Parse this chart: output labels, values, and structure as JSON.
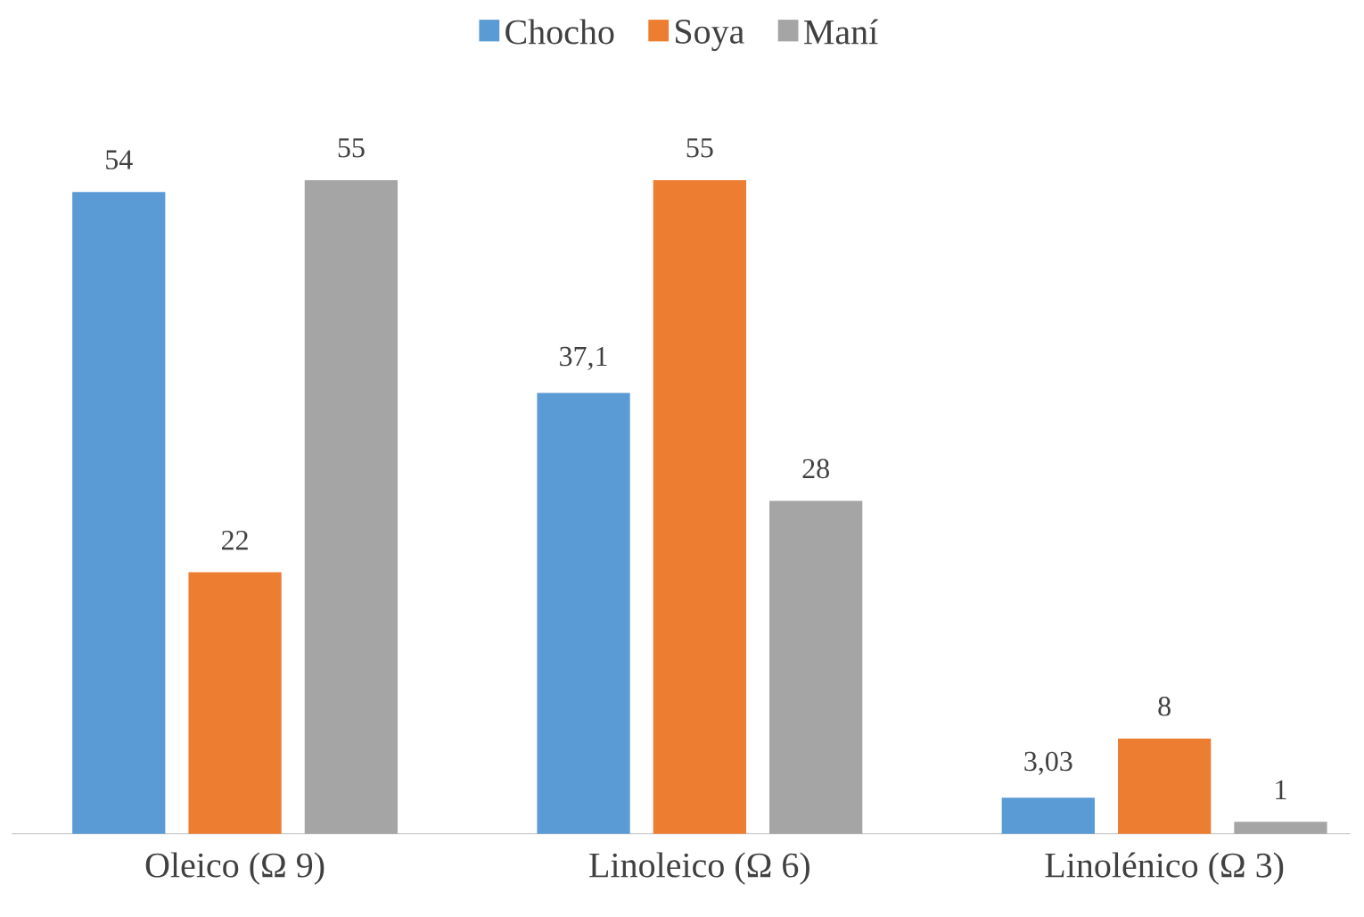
{
  "chart_data": {
    "type": "bar",
    "categories": [
      "Oleico (Ω 9)",
      "Linoleico (Ω 6)",
      "Linolénico (Ω 3)"
    ],
    "series": [
      {
        "name": "Chocho",
        "color": "#5b9bd5",
        "values": [
          54,
          37.1,
          3.03
        ],
        "value_labels": [
          "54",
          "37,1",
          "3,03"
        ]
      },
      {
        "name": "Soya",
        "color": "#ed7d31",
        "values": [
          22,
          55,
          8
        ],
        "value_labels": [
          "22",
          "55",
          "8"
        ]
      },
      {
        "name": "Maní",
        "color": "#a5a5a5",
        "values": [
          55,
          28,
          1
        ],
        "value_labels": [
          "55",
          "28",
          "1"
        ]
      }
    ],
    "legend": "top"
  }
}
